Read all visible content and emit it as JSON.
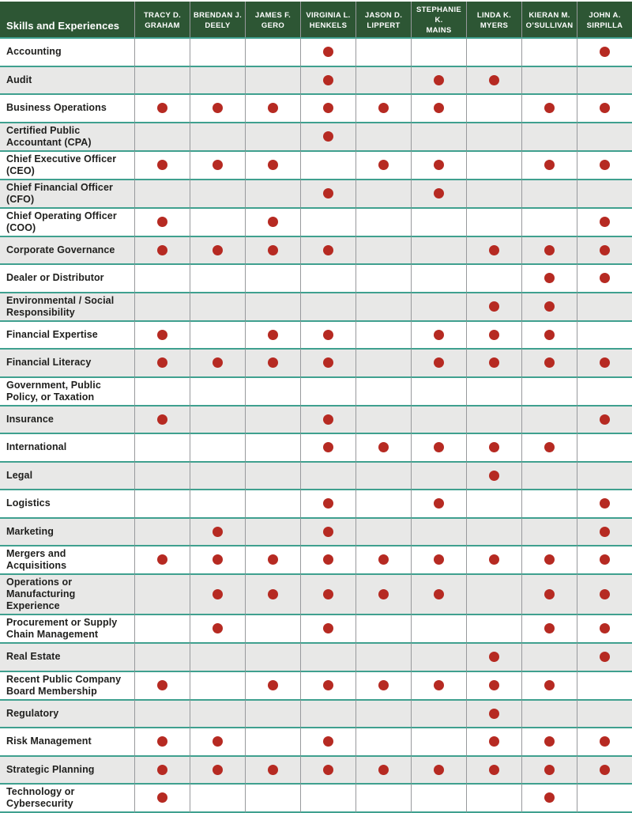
{
  "table": {
    "corner_label": "Skills and Experiences",
    "columns": [
      {
        "line1": "TRACY D.",
        "line2": "GRAHAM"
      },
      {
        "line1": "BRENDAN J.",
        "line2": "DEELY"
      },
      {
        "line1": "JAMES F.",
        "line2": "GERO"
      },
      {
        "line1": "VIRGINIA L.",
        "line2": "HENKELS"
      },
      {
        "line1": "JASON D.",
        "line2": "LIPPERT"
      },
      {
        "line1": "STEPHANIE K.",
        "line2": "MAINS"
      },
      {
        "line1": "LINDA K.",
        "line2": "MYERS"
      },
      {
        "line1": "KIERAN M.",
        "line2": "O’SULLIVAN"
      },
      {
        "line1": "JOHN A.",
        "line2": "SIRPILLA"
      }
    ],
    "rows": [
      {
        "label": "Accounting",
        "marks": [
          0,
          0,
          0,
          1,
          0,
          0,
          0,
          0,
          1
        ]
      },
      {
        "label": "Audit",
        "marks": [
          0,
          0,
          0,
          1,
          0,
          1,
          1,
          0,
          0
        ]
      },
      {
        "label": "Business Operations",
        "marks": [
          1,
          1,
          1,
          1,
          1,
          1,
          0,
          1,
          1
        ]
      },
      {
        "label": "Certified Public Accountant (CPA)",
        "marks": [
          0,
          0,
          0,
          1,
          0,
          0,
          0,
          0,
          0
        ]
      },
      {
        "label": "Chief Executive Officer (CEO)",
        "marks": [
          1,
          1,
          1,
          0,
          1,
          1,
          0,
          1,
          1
        ]
      },
      {
        "label": "Chief Financial Officer (CFO)",
        "marks": [
          0,
          0,
          0,
          1,
          0,
          1,
          0,
          0,
          0
        ]
      },
      {
        "label": "Chief Operating Officer (COO)",
        "marks": [
          1,
          0,
          1,
          0,
          0,
          0,
          0,
          0,
          1
        ]
      },
      {
        "label": "Corporate Governance",
        "marks": [
          1,
          1,
          1,
          1,
          0,
          0,
          1,
          1,
          1
        ]
      },
      {
        "label": "Dealer or Distributor",
        "marks": [
          0,
          0,
          0,
          0,
          0,
          0,
          0,
          1,
          1
        ]
      },
      {
        "label": "Environmental / Social Responsibility",
        "marks": [
          0,
          0,
          0,
          0,
          0,
          0,
          1,
          1,
          0
        ]
      },
      {
        "label": "Financial Expertise",
        "marks": [
          1,
          0,
          1,
          1,
          0,
          1,
          1,
          1,
          0
        ]
      },
      {
        "label": "Financial Literacy",
        "marks": [
          1,
          1,
          1,
          1,
          0,
          1,
          1,
          1,
          1
        ]
      },
      {
        "label": "Government, Public Policy, or Taxation",
        "marks": [
          0,
          0,
          0,
          0,
          0,
          0,
          0,
          0,
          0
        ]
      },
      {
        "label": "Insurance",
        "marks": [
          1,
          0,
          0,
          1,
          0,
          0,
          0,
          0,
          1
        ]
      },
      {
        "label": "International",
        "marks": [
          0,
          0,
          0,
          1,
          1,
          1,
          1,
          1,
          0
        ]
      },
      {
        "label": "Legal",
        "marks": [
          0,
          0,
          0,
          0,
          0,
          0,
          1,
          0,
          0
        ]
      },
      {
        "label": "Logistics",
        "marks": [
          0,
          0,
          0,
          1,
          0,
          1,
          0,
          0,
          1
        ]
      },
      {
        "label": "Marketing",
        "marks": [
          0,
          1,
          0,
          1,
          0,
          0,
          0,
          0,
          1
        ]
      },
      {
        "label": "Mergers and Acquisitions",
        "marks": [
          1,
          1,
          1,
          1,
          1,
          1,
          1,
          1,
          1
        ]
      },
      {
        "label": "Operations or Manufacturing Experience",
        "marks": [
          0,
          1,
          1,
          1,
          1,
          1,
          0,
          1,
          1
        ]
      },
      {
        "label": "Procurement or Supply Chain Management",
        "marks": [
          0,
          1,
          0,
          1,
          0,
          0,
          0,
          1,
          1
        ]
      },
      {
        "label": "Real Estate",
        "marks": [
          0,
          0,
          0,
          0,
          0,
          0,
          1,
          0,
          1
        ]
      },
      {
        "label": "Recent Public Company Board Membership",
        "marks": [
          1,
          0,
          1,
          1,
          1,
          1,
          1,
          1,
          0
        ]
      },
      {
        "label": "Regulatory",
        "marks": [
          0,
          0,
          0,
          0,
          0,
          0,
          1,
          0,
          0
        ]
      },
      {
        "label": "Risk Management",
        "marks": [
          1,
          1,
          0,
          1,
          0,
          0,
          1,
          1,
          1
        ]
      },
      {
        "label": "Strategic Planning",
        "marks": [
          1,
          1,
          1,
          1,
          1,
          1,
          1,
          1,
          1
        ]
      },
      {
        "label": "Technology or Cybersecurity",
        "marks": [
          1,
          0,
          0,
          0,
          0,
          0,
          0,
          1,
          0
        ]
      }
    ]
  },
  "colors": {
    "header_bg": "#2d5634",
    "header_text": "#ffffff",
    "row_bg": "#ffffff",
    "row_alt_bg": "#e8e8e7",
    "divider_teal": "#3fa08f",
    "divider_gray": "#97999c",
    "dot": "#b62a22",
    "label_text": "#1f1f1d"
  }
}
